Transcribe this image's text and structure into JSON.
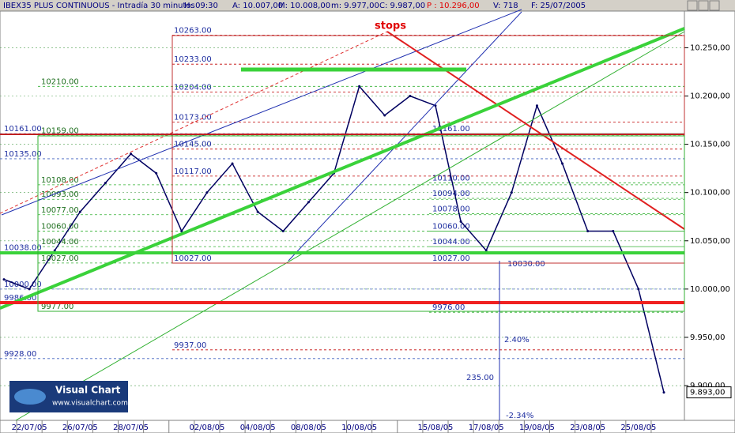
{
  "header": {
    "parts": [
      {
        "text": "IBEX35 PLUS CONTINUOUS - Intradía 30 minutos",
        "color": "#000080"
      },
      {
        "text": "H: 09:30",
        "color": "#000080"
      },
      {
        "text": "A: 10.007,00",
        "color": "#000080"
      },
      {
        "text": "M: 10.008,00",
        "color": "#000080"
      },
      {
        "text": "m: 9.977,00",
        "color": "#000080"
      },
      {
        "text": "C: 9.987,00",
        "color": "#000080"
      },
      {
        "text": "P : 10.296,00",
        "color": "#e00000"
      },
      {
        "text": "V: 718",
        "color": "#000080"
      },
      {
        "text": "F: 25/07/2005",
        "color": "#000080"
      }
    ]
  },
  "chart_data": {
    "type": "line",
    "color": "#000060",
    "categories": [
      null,
      "22/07/05",
      null,
      "26/07/05",
      null,
      "28/07/05",
      null,
      null,
      "02/08/05",
      null,
      "04/08/05",
      null,
      "08/08/05",
      null,
      "10/08/05",
      null,
      null,
      "15/08/05",
      null,
      "17/08/05",
      null,
      "19/08/05",
      null,
      "23/08/05",
      null,
      "25/08/05",
      null
    ],
    "values": [
      10010,
      10000,
      10040,
      10080,
      10110,
      10140,
      10120,
      10060,
      10100,
      10130,
      10080,
      10060,
      10090,
      10120,
      10210,
      10180,
      10200,
      10190,
      10070,
      10040,
      10100,
      10190,
      10130,
      10060,
      10060,
      10000,
      9893
    ],
    "ylim": [
      9864,
      10288
    ],
    "yticks": [
      {
        "value": 10250,
        "label": "10.250,00"
      },
      {
        "value": 10200,
        "label": "10.200,00"
      },
      {
        "value": 10150,
        "label": "10.150,00"
      },
      {
        "value": 10100,
        "label": "10.100,00"
      },
      {
        "value": 10050,
        "label": "10.050,00"
      },
      {
        "value": 10000,
        "label": "10.000,00"
      },
      {
        "value": 9950,
        "label": "9.950,00"
      },
      {
        "value": 9900,
        "label": "9.900,00"
      }
    ],
    "grid": true,
    "last_price": {
      "value": 9893,
      "label": "9.893,00"
    },
    "level_groups": [
      {
        "color": "#1e2ea0",
        "line_color": "#c00000",
        "levels": [
          {
            "value": 10263,
            "label": "10263.00"
          },
          {
            "value": 10233,
            "label": "10233.00"
          },
          {
            "value": 10204,
            "label": "10204.00"
          },
          {
            "value": 10173,
            "label": "10173.00"
          },
          {
            "value": 10145,
            "label": "10145.00"
          },
          {
            "value": 10117,
            "label": "10117.00"
          },
          {
            "value": 10027,
            "label": "10027.00"
          },
          {
            "value": 9937,
            "label": "9937.00"
          }
        ]
      },
      {
        "color": "#207020",
        "line_color": "#30b030",
        "levels": [
          {
            "value": 10210,
            "label": "10210.00"
          },
          {
            "value": 10159,
            "label": "10159.00"
          },
          {
            "value": 10108,
            "label": "10108.00"
          },
          {
            "value": 10093,
            "label": "10093.00"
          },
          {
            "value": 10077,
            "label": "10077.00"
          },
          {
            "value": 10060,
            "label": "10060.00"
          },
          {
            "value": 10044,
            "label": "10044.00"
          },
          {
            "value": 10027,
            "label": "10027.00"
          },
          {
            "value": 9977,
            "label": "9977.00"
          }
        ]
      },
      {
        "color": "#1e2ea0",
        "line_color": "#4060c0",
        "levels": [
          {
            "value": 10161,
            "label": "10161.00"
          },
          {
            "value": 10135,
            "label": "10135.00"
          },
          {
            "value": 10038,
            "label": "10038.00"
          },
          {
            "value": 10000,
            "label": "10000.00"
          },
          {
            "value": 9986,
            "label": "9986.00"
          },
          {
            "value": 9928,
            "label": "9928.00"
          }
        ]
      },
      {
        "color": "#1e2ea0",
        "line_color": "#30b030",
        "levels": [
          {
            "value": 10161,
            "label": "10161.00"
          },
          {
            "value": 10110,
            "label": "10110.00"
          },
          {
            "value": 10094,
            "label": "10094.00"
          },
          {
            "value": 10078,
            "label": "10078.00"
          },
          {
            "value": 10060,
            "label": "10060.00"
          },
          {
            "value": 10044,
            "label": "10044.00"
          },
          {
            "value": 10027,
            "label": "10027.00"
          },
          {
            "value": 9976,
            "label": "9976.00"
          }
        ]
      }
    ],
    "annotations": [
      {
        "text": "stops",
        "color": "#e00000"
      },
      {
        "text": "10030.00",
        "color": "#1e2ea0"
      },
      {
        "text": "2.40%",
        "color": "#1e2ea0"
      },
      {
        "text": "235.00",
        "color": "#1e2ea0"
      },
      {
        "text": "-2.34%",
        "color": "#1e2ea0"
      }
    ]
  },
  "logo": {
    "title": "Visual Chart",
    "url": "www.visualchart.com"
  }
}
